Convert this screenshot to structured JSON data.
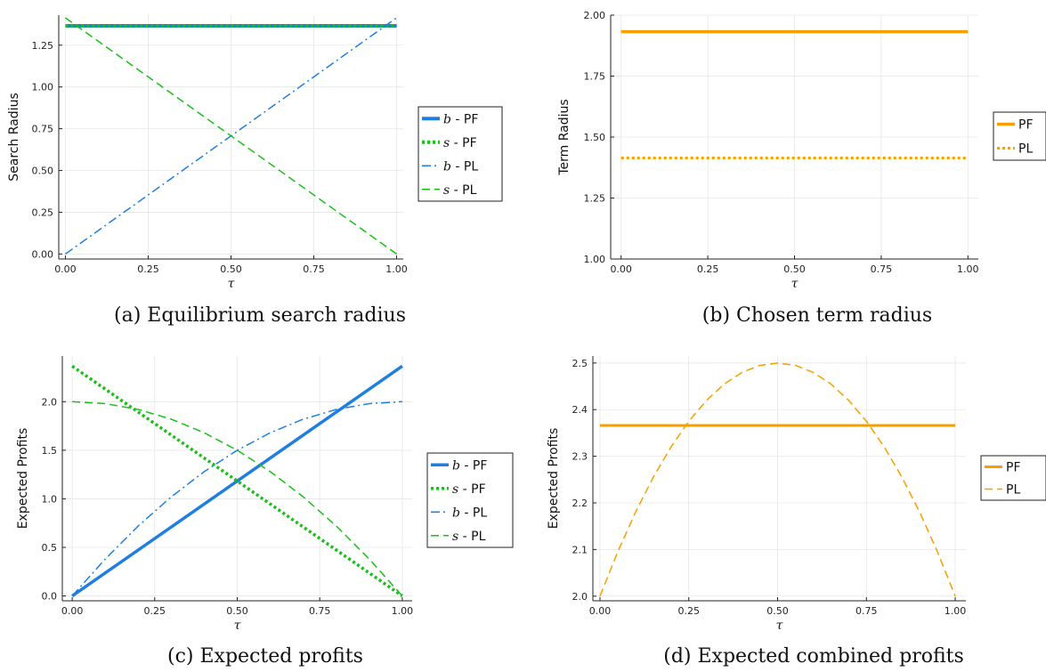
{
  "chart_data": [
    {
      "id": "a",
      "type": "line",
      "caption": "(a) Equilibrium search radius",
      "xlabel": "τ",
      "ylabel": "Search Radius",
      "xlim": [
        -0.02,
        1.02
      ],
      "ylim": [
        -0.03,
        1.43
      ],
      "xticks": [
        0,
        0.25,
        0.5,
        0.75,
        1
      ],
      "xtick_labels": [
        "0.00",
        "0.25",
        "0.50",
        "0.75",
        "1.00"
      ],
      "yticks": [
        0,
        0.25,
        0.5,
        0.75,
        1,
        1.25
      ],
      "ytick_labels": [
        "0.00",
        "0.25",
        "0.50",
        "0.75",
        "1.00",
        "1.25"
      ],
      "grid": true,
      "legend_position": "outside-right",
      "series": [
        {
          "name": "b - PF",
          "var": "b",
          "label": "PF",
          "color": "#1f7fe0",
          "style": "solid",
          "width": 4,
          "x": [
            0,
            1
          ],
          "y": [
            1.366,
            1.366
          ]
        },
        {
          "name": "s - PF",
          "var": "s",
          "label": "PF",
          "color": "#18c018",
          "style": "dotted",
          "width": 4,
          "x": [
            0,
            1
          ],
          "y": [
            1.366,
            1.366
          ]
        },
        {
          "name": "b - PL",
          "var": "b",
          "label": "PL",
          "color": "#1f7fe0",
          "style": "dashdot",
          "width": 1.5,
          "x": [
            0,
            1
          ],
          "y": [
            0.0,
            1.414
          ]
        },
        {
          "name": "s - PL",
          "var": "s",
          "label": "PL",
          "color": "#18c018",
          "style": "dashed",
          "width": 1.5,
          "x": [
            0,
            1
          ],
          "y": [
            1.414,
            0.0
          ]
        }
      ]
    },
    {
      "id": "b",
      "type": "line",
      "caption": "(b) Chosen term radius",
      "xlabel": "τ",
      "ylabel": "Term Radius",
      "xlim": [
        -0.03,
        1.03
      ],
      "ylim": [
        1.0,
        2.0
      ],
      "xticks": [
        0,
        0.25,
        0.5,
        0.75,
        1
      ],
      "xtick_labels": [
        "0.00",
        "0.25",
        "0.50",
        "0.75",
        "1.00"
      ],
      "yticks": [
        1,
        1.25,
        1.5,
        1.75,
        2
      ],
      "ytick_labels": [
        "1.00",
        "1.25",
        "1.50",
        "1.75",
        "2.00"
      ],
      "grid": true,
      "legend_position": "outside-right",
      "series": [
        {
          "name": "PF",
          "label": "PF",
          "color": "#f5a000",
          "style": "solid",
          "width": 3.5,
          "x": [
            0,
            1
          ],
          "y": [
            1.932,
            1.932
          ]
        },
        {
          "name": "PL",
          "label": "PL",
          "color": "#f5a000",
          "style": "dotted",
          "width": 3,
          "x": [
            0,
            1
          ],
          "y": [
            1.414,
            1.414
          ]
        }
      ]
    },
    {
      "id": "c",
      "type": "line",
      "caption": "(c) Expected profits",
      "xlabel": "τ",
      "ylabel": "Expected Profits",
      "xlim": [
        -0.03,
        1.03
      ],
      "ylim": [
        -0.05,
        2.47
      ],
      "xticks": [
        0,
        0.25,
        0.5,
        0.75,
        1
      ],
      "xtick_labels": [
        "0.00",
        "0.25",
        "0.50",
        "0.75",
        "1.00"
      ],
      "yticks": [
        0,
        0.5,
        1,
        1.5,
        2
      ],
      "ytick_labels": [
        "0.0",
        "0.5",
        "1.0",
        "1.5",
        "2.0"
      ],
      "grid": true,
      "legend_position": "outside-right",
      "series": [
        {
          "name": "b - PF",
          "var": "b",
          "label": "PF",
          "color": "#1f7fe0",
          "style": "solid",
          "width": 3.5,
          "x": [
            0,
            1
          ],
          "y": [
            0.0,
            2.366
          ]
        },
        {
          "name": "s - PF",
          "var": "s",
          "label": "PF",
          "color": "#18c018",
          "style": "dotted",
          "width": 3.5,
          "x": [
            0,
            1
          ],
          "y": [
            2.366,
            0.0
          ]
        },
        {
          "name": "b - PL",
          "var": "b",
          "label": "PL",
          "color": "#1f7fe0",
          "style": "dashdot",
          "width": 1.5,
          "x": [
            0,
            0.1,
            0.2,
            0.3,
            0.4,
            0.5,
            0.6,
            0.7,
            0.8,
            0.9,
            1.0
          ],
          "y": [
            0.0,
            0.38,
            0.72,
            1.02,
            1.28,
            1.5,
            1.68,
            1.82,
            1.92,
            1.98,
            2.0
          ]
        },
        {
          "name": "s - PL",
          "var": "s",
          "label": "PL",
          "color": "#18c018",
          "style": "dashed",
          "width": 1.5,
          "x": [
            0,
            0.1,
            0.2,
            0.3,
            0.4,
            0.5,
            0.6,
            0.7,
            0.8,
            0.9,
            1.0
          ],
          "y": [
            2.0,
            1.98,
            1.92,
            1.82,
            1.68,
            1.5,
            1.28,
            1.02,
            0.72,
            0.38,
            0.0
          ]
        }
      ]
    },
    {
      "id": "d",
      "type": "line",
      "caption": "(d) Expected combined profits",
      "xlabel": "τ",
      "ylabel": "Expected Profits",
      "xlim": [
        -0.02,
        1.03
      ],
      "ylim": [
        1.99,
        2.515
      ],
      "xticks": [
        0,
        0.25,
        0.5,
        0.75,
        1
      ],
      "xtick_labels": [
        "0.00",
        "0.25",
        "0.50",
        "0.75",
        "1.00"
      ],
      "yticks": [
        2.0,
        2.1,
        2.2,
        2.3,
        2.4,
        2.5
      ],
      "ytick_labels": [
        "2.0",
        "2.1",
        "2.2",
        "2.3",
        "2.4",
        "2.5"
      ],
      "grid": true,
      "legend_position": "outside-right",
      "series": [
        {
          "name": "PF",
          "label": "PF",
          "color": "#f5a000",
          "style": "solid",
          "width": 3,
          "x": [
            0,
            1
          ],
          "y": [
            2.366,
            2.366
          ]
        },
        {
          "name": "PL",
          "label": "PL",
          "color": "#f5a000",
          "style": "dashed",
          "width": 1.5,
          "x": [
            0,
            0.05,
            0.1,
            0.15,
            0.2,
            0.25,
            0.3,
            0.35,
            0.4,
            0.45,
            0.5,
            0.55,
            0.6,
            0.65,
            0.7,
            0.75,
            0.8,
            0.85,
            0.9,
            0.95,
            1.0
          ],
          "y": [
            2.0,
            2.095,
            2.18,
            2.255,
            2.32,
            2.375,
            2.42,
            2.455,
            2.48,
            2.495,
            2.5,
            2.495,
            2.48,
            2.455,
            2.42,
            2.375,
            2.32,
            2.255,
            2.18,
            2.095,
            2.0
          ]
        }
      ]
    }
  ]
}
